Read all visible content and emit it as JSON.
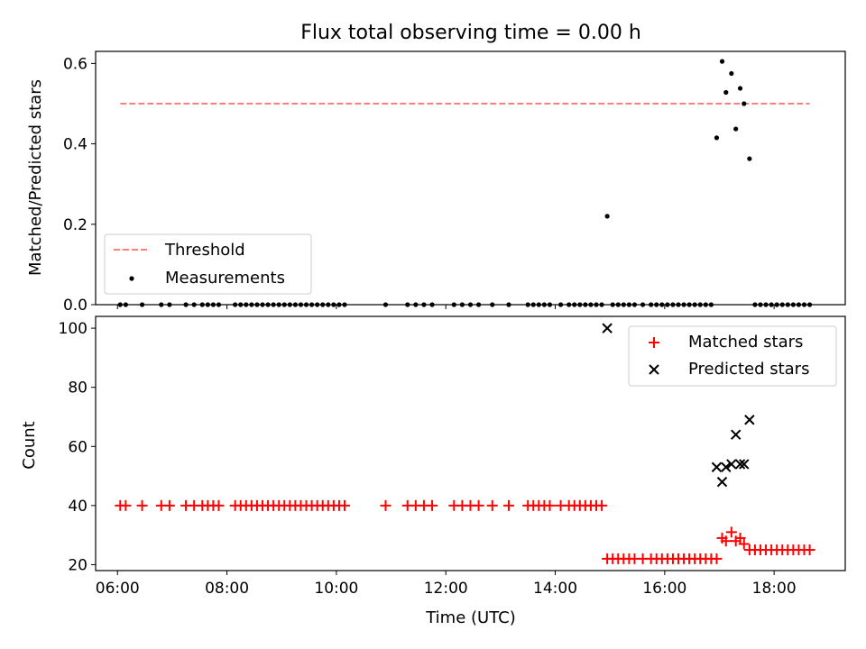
{
  "chart_data": [
    {
      "type": "scatter",
      "title": "Flux total observing time = 0.00 h",
      "xlabel": "",
      "ylabel": "Matched/Predicted stars",
      "xlim": [
        5.6,
        19.3
      ],
      "ylim": [
        0.0,
        0.63
      ],
      "yticks": [
        0.0,
        0.2,
        0.4,
        0.6
      ],
      "ytick_labels": [
        "0.0",
        "0.2",
        "0.4",
        "0.6"
      ],
      "legend_position": "lower-left",
      "threshold": {
        "name": "Threshold",
        "y": 0.5,
        "x_range": [
          6.05,
          18.65
        ],
        "color": "#ff7f7f",
        "style": "dashed"
      },
      "series": [
        {
          "name": "Measurements",
          "marker": "dot",
          "color": "#000000",
          "x": [
            6.05,
            6.15,
            6.45,
            6.8,
            6.95,
            7.25,
            7.4,
            7.55,
            7.65,
            7.75,
            7.85,
            8.15,
            8.25,
            8.35,
            8.45,
            8.55,
            8.65,
            8.75,
            8.85,
            8.95,
            9.05,
            9.15,
            9.25,
            9.35,
            9.45,
            9.55,
            9.65,
            9.75,
            9.85,
            9.95,
            10.05,
            10.15,
            10.9,
            11.3,
            11.45,
            11.6,
            11.75,
            12.15,
            12.3,
            12.45,
            12.6,
            12.85,
            13.15,
            13.5,
            13.6,
            13.7,
            13.8,
            13.9,
            14.1,
            14.25,
            14.35,
            14.45,
            14.55,
            14.65,
            14.75,
            14.85,
            14.95,
            15.05,
            15.15,
            15.25,
            15.35,
            15.45,
            15.6,
            15.75,
            15.85,
            15.95,
            16.05,
            16.15,
            16.25,
            16.35,
            16.45,
            16.55,
            16.65,
            16.75,
            16.85,
            16.95,
            17.05,
            17.12,
            17.22,
            17.3,
            17.38,
            17.45,
            17.55,
            17.65,
            17.75,
            17.85,
            17.95,
            18.05,
            18.15,
            18.25,
            18.35,
            18.45,
            18.55,
            18.65
          ],
          "y": [
            0,
            0,
            0,
            0,
            0,
            0,
            0,
            0,
            0,
            0,
            0,
            0,
            0,
            0,
            0,
            0,
            0,
            0,
            0,
            0,
            0,
            0,
            0,
            0,
            0,
            0,
            0,
            0,
            0,
            0,
            0,
            0,
            0,
            0,
            0,
            0,
            0,
            0,
            0,
            0,
            0,
            0,
            0,
            0,
            0,
            0,
            0,
            0,
            0,
            0,
            0,
            0,
            0,
            0,
            0,
            0,
            0.22,
            0,
            0,
            0,
            0,
            0,
            0,
            0,
            0,
            0,
            0,
            0,
            0,
            0,
            0,
            0,
            0,
            0,
            0,
            0.415,
            0.605,
            0.528,
            0.575,
            0.437,
            0.538,
            0.5,
            0.363,
            0,
            0,
            0,
            0,
            0,
            0,
            0,
            0,
            0,
            0,
            0
          ]
        }
      ]
    },
    {
      "type": "scatter",
      "title": "",
      "xlabel": "Time (UTC)",
      "ylabel": "Count",
      "xlim": [
        5.6,
        19.3
      ],
      "ylim": [
        18,
        104
      ],
      "xticks": [
        6,
        8,
        10,
        12,
        14,
        16,
        18
      ],
      "xtick_labels": [
        "06:00",
        "08:00",
        "10:00",
        "12:00",
        "14:00",
        "16:00",
        "18:00"
      ],
      "yticks": [
        20,
        40,
        60,
        80,
        100
      ],
      "ytick_labels": [
        "20",
        "40",
        "60",
        "80",
        "100"
      ],
      "legend_position": "top-right",
      "series": [
        {
          "name": "Matched stars",
          "marker": "plus",
          "color": "#ff0000",
          "x": [
            6.05,
            6.15,
            6.45,
            6.8,
            6.95,
            7.25,
            7.4,
            7.55,
            7.65,
            7.75,
            7.85,
            8.15,
            8.25,
            8.35,
            8.45,
            8.55,
            8.65,
            8.75,
            8.85,
            8.95,
            9.05,
            9.15,
            9.25,
            9.35,
            9.45,
            9.55,
            9.65,
            9.75,
            9.85,
            9.95,
            10.05,
            10.15,
            10.9,
            11.3,
            11.45,
            11.6,
            11.75,
            12.15,
            12.3,
            12.45,
            12.6,
            12.85,
            13.15,
            13.5,
            13.6,
            13.7,
            13.8,
            13.9,
            14.1,
            14.25,
            14.35,
            14.45,
            14.55,
            14.65,
            14.75,
            14.85,
            14.95,
            15.05,
            15.15,
            15.25,
            15.35,
            15.45,
            15.6,
            15.75,
            15.85,
            15.95,
            16.05,
            16.15,
            16.25,
            16.35,
            16.45,
            16.55,
            16.65,
            16.75,
            16.85,
            16.95,
            17.05,
            17.12,
            17.22,
            17.3,
            17.38,
            17.45,
            17.55,
            17.65,
            17.75,
            17.85,
            17.95,
            18.05,
            18.15,
            18.25,
            18.35,
            18.45,
            18.55,
            18.65
          ],
          "y": [
            40,
            40,
            40,
            40,
            40,
            40,
            40,
            40,
            40,
            40,
            40,
            40,
            40,
            40,
            40,
            40,
            40,
            40,
            40,
            40,
            40,
            40,
            40,
            40,
            40,
            40,
            40,
            40,
            40,
            40,
            40,
            40,
            40,
            40,
            40,
            40,
            40,
            40,
            40,
            40,
            40,
            40,
            40,
            40,
            40,
            40,
            40,
            40,
            40,
            40,
            40,
            40,
            40,
            40,
            40,
            40,
            22,
            22,
            22,
            22,
            22,
            22,
            22,
            22,
            22,
            22,
            22,
            22,
            22,
            22,
            22,
            22,
            22,
            22,
            22,
            22,
            29,
            28,
            31,
            28,
            29,
            27,
            25,
            25,
            25,
            25,
            25,
            25,
            25,
            25,
            25,
            25,
            25,
            25
          ]
        },
        {
          "name": "Predicted stars",
          "marker": "x",
          "color": "#000000",
          "x": [
            14.95,
            16.95,
            17.05,
            17.12,
            17.22,
            17.3,
            17.38,
            17.45,
            17.55
          ],
          "y": [
            100,
            53,
            48,
            53,
            54,
            64,
            54,
            54,
            69
          ]
        }
      ]
    }
  ]
}
